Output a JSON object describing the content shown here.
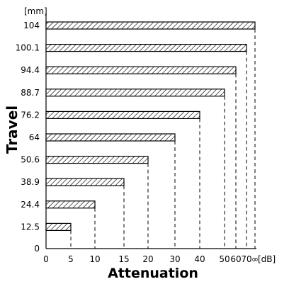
{
  "chart_data": {
    "type": "bar",
    "orientation": "horizontal",
    "xlabel": "Attenuation",
    "ylabel": "Travel",
    "y_unit": "[mm]",
    "x_unit": "[dB]",
    "x_ticks": [
      "0",
      "5",
      "10",
      "15",
      "20",
      "30",
      "40",
      "50",
      "60",
      "70",
      "∞"
    ],
    "y_ticks": [
      "0",
      "12.5",
      "24.4",
      "38.9",
      "50.6",
      "64",
      "76.2",
      "88.7",
      "94.4",
      "100.1",
      "104"
    ],
    "bars": [
      {
        "travel": "12.5",
        "attenuation": "5"
      },
      {
        "travel": "24.4",
        "attenuation": "10"
      },
      {
        "travel": "38.9",
        "attenuation": "15"
      },
      {
        "travel": "50.6",
        "attenuation": "20"
      },
      {
        "travel": "64",
        "attenuation": "30"
      },
      {
        "travel": "76.2",
        "attenuation": "40"
      },
      {
        "travel": "88.7",
        "attenuation": "50"
      },
      {
        "travel": "94.4",
        "attenuation": "60"
      },
      {
        "travel": "100.1",
        "attenuation": "70"
      },
      {
        "travel": "104",
        "attenuation": "∞"
      }
    ],
    "bar_fill": "hatched",
    "grid": false
  }
}
